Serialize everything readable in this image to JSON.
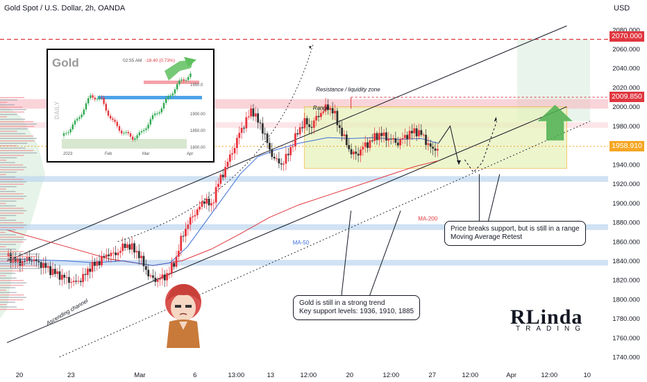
{
  "header": {
    "title": "Gold Spot / U.S. Dollar, 2h, OANDA",
    "currency": "USD"
  },
  "price_tags": {
    "target": "2070.000",
    "resistance": "2009.850",
    "last": "1958.910"
  },
  "annotations": {
    "range": "Range",
    "resistance_zone": "Resistance / liquidity zone",
    "channel": "Ascending channel",
    "ma50": "MA-50",
    "ma200": "MA-200"
  },
  "callouts": {
    "trend": [
      "Gold is still in a strong trend",
      "Key support levels: 1936, 1910, 1885"
    ],
    "range_break": [
      "Price breaks support, but is still in a range",
      "Moving Average Retest"
    ]
  },
  "logo": {
    "line1": "RLinda",
    "line2": "TRADING"
  },
  "inset": {
    "title": "Gold",
    "time": "02:55 AM",
    "change": "-18.40 (0.73%)",
    "side_label": "DAILY",
    "price_labels": [
      "1950.0",
      "1900.00",
      "1850.00",
      "1800.00"
    ],
    "x_labels": [
      "2023",
      "Feb",
      "Mar",
      "Apr"
    ]
  },
  "colors": {
    "candle_up": "#e8333c",
    "candle_down": "#2f2f2f",
    "ma50": "#3d6fd8",
    "ma200": "#e0363f",
    "range_fill": "#e6f2b8",
    "range_border": "#f2b233",
    "support_band": "#bcd6ee",
    "resistance_band": "#f5b8c0",
    "green_zone": "#e7f4ea",
    "green_arrow": "#4caf50",
    "last_price_tag": "#f5a623",
    "level_tag": "#e0363f"
  },
  "chart_data": {
    "type": "candlestick",
    "symbol": "Gold Spot / U.S. Dollar",
    "timeframe": "2h",
    "y_axis": {
      "unit": "USD",
      "ylim": [
        1730,
        2095
      ],
      "ticks": [
        1740,
        1760,
        1780,
        1800,
        1820,
        1840,
        1860,
        1880,
        1900,
        1920,
        1940,
        1960,
        1980,
        2000,
        2020,
        2040,
        2060,
        2080
      ]
    },
    "x_axis": {
      "ticks": [
        "20",
        "23",
        "Mar",
        "6",
        "13:00",
        "13",
        "12:00",
        "20",
        "12:00",
        "27",
        "12:00",
        "Apr",
        "12:00",
        "10"
      ]
    },
    "price_path": [
      [
        0,
        1845
      ],
      [
        4,
        1838
      ],
      [
        8,
        1842
      ],
      [
        12,
        1836
      ],
      [
        16,
        1828
      ],
      [
        20,
        1822
      ],
      [
        23,
        1817
      ],
      [
        26,
        1822
      ],
      [
        28,
        1832
      ],
      [
        31,
        1838
      ],
      [
        33,
        1843
      ],
      [
        35,
        1848
      ],
      [
        37,
        1846
      ],
      [
        39,
        1852
      ],
      [
        41,
        1857
      ],
      [
        43,
        1853
      ],
      [
        45,
        1848
      ],
      [
        47,
        1835
      ],
      [
        49,
        1823
      ],
      [
        51,
        1820
      ],
      [
        54,
        1823
      ],
      [
        56,
        1830
      ],
      [
        58,
        1842
      ],
      [
        60,
        1865
      ],
      [
        62,
        1878
      ],
      [
        64,
        1888
      ],
      [
        66,
        1895
      ],
      [
        68,
        1905
      ],
      [
        70,
        1895
      ],
      [
        72,
        1918
      ],
      [
        74,
        1930
      ],
      [
        76,
        1945
      ],
      [
        78,
        1958
      ],
      [
        80,
        1975
      ],
      [
        82,
        1985
      ],
      [
        84,
        1998
      ],
      [
        86,
        1985
      ],
      [
        88,
        1975
      ],
      [
        90,
        1955
      ],
      [
        92,
        1945
      ],
      [
        94,
        1940
      ],
      [
        96,
        1948
      ],
      [
        98,
        1962
      ],
      [
        100,
        1975
      ],
      [
        102,
        1985
      ],
      [
        104,
        1978
      ],
      [
        106,
        1988
      ],
      [
        108,
        1995
      ],
      [
        110,
        2000
      ],
      [
        112,
        1995
      ],
      [
        114,
        1978
      ],
      [
        116,
        1965
      ],
      [
        118,
        1952
      ],
      [
        120,
        1950
      ],
      [
        122,
        1958
      ],
      [
        124,
        1962
      ],
      [
        126,
        1968
      ],
      [
        128,
        1972
      ],
      [
        130,
        1968
      ],
      [
        132,
        1966
      ],
      [
        134,
        1962
      ],
      [
        136,
        1968
      ],
      [
        138,
        1972
      ],
      [
        140,
        1975
      ],
      [
        142,
        1972
      ],
      [
        144,
        1963
      ],
      [
        146,
        1955
      ],
      [
        148,
        1958
      ]
    ],
    "ma50": [
      [
        0,
        1842
      ],
      [
        20,
        1840
      ],
      [
        30,
        1838
      ],
      [
        40,
        1840
      ],
      [
        50,
        1835
      ],
      [
        56,
        1838
      ],
      [
        62,
        1855
      ],
      [
        68,
        1880
      ],
      [
        74,
        1905
      ],
      [
        80,
        1930
      ],
      [
        86,
        1948
      ],
      [
        92,
        1955
      ],
      [
        100,
        1962
      ],
      [
        110,
        1968
      ],
      [
        118,
        1967
      ],
      [
        126,
        1968
      ],
      [
        134,
        1966
      ],
      [
        142,
        1967
      ],
      [
        148,
        1962
      ]
    ],
    "ma200": [
      [
        0,
        1872
      ],
      [
        20,
        1855
      ],
      [
        35,
        1842
      ],
      [
        50,
        1835
      ],
      [
        60,
        1840
      ],
      [
        70,
        1852
      ],
      [
        80,
        1868
      ],
      [
        90,
        1885
      ],
      [
        100,
        1898
      ],
      [
        110,
        1908
      ],
      [
        120,
        1918
      ],
      [
        130,
        1928
      ],
      [
        140,
        1938
      ],
      [
        148,
        1944
      ]
    ],
    "levels": {
      "target": 2070,
      "resistance": 2009.85,
      "last": 1958.91,
      "range_top": 2000,
      "range_bottom": 1936,
      "key_supports": [
        1936,
        1910,
        1885
      ]
    },
    "zones": {
      "range": [
        1936,
        2000
      ],
      "resistance_band": [
        1998,
        2008
      ],
      "support_band_1": [
        1922,
        1928
      ],
      "support_band_2": [
        1872,
        1878
      ],
      "support_band_3": [
        1835,
        1841
      ]
    }
  }
}
